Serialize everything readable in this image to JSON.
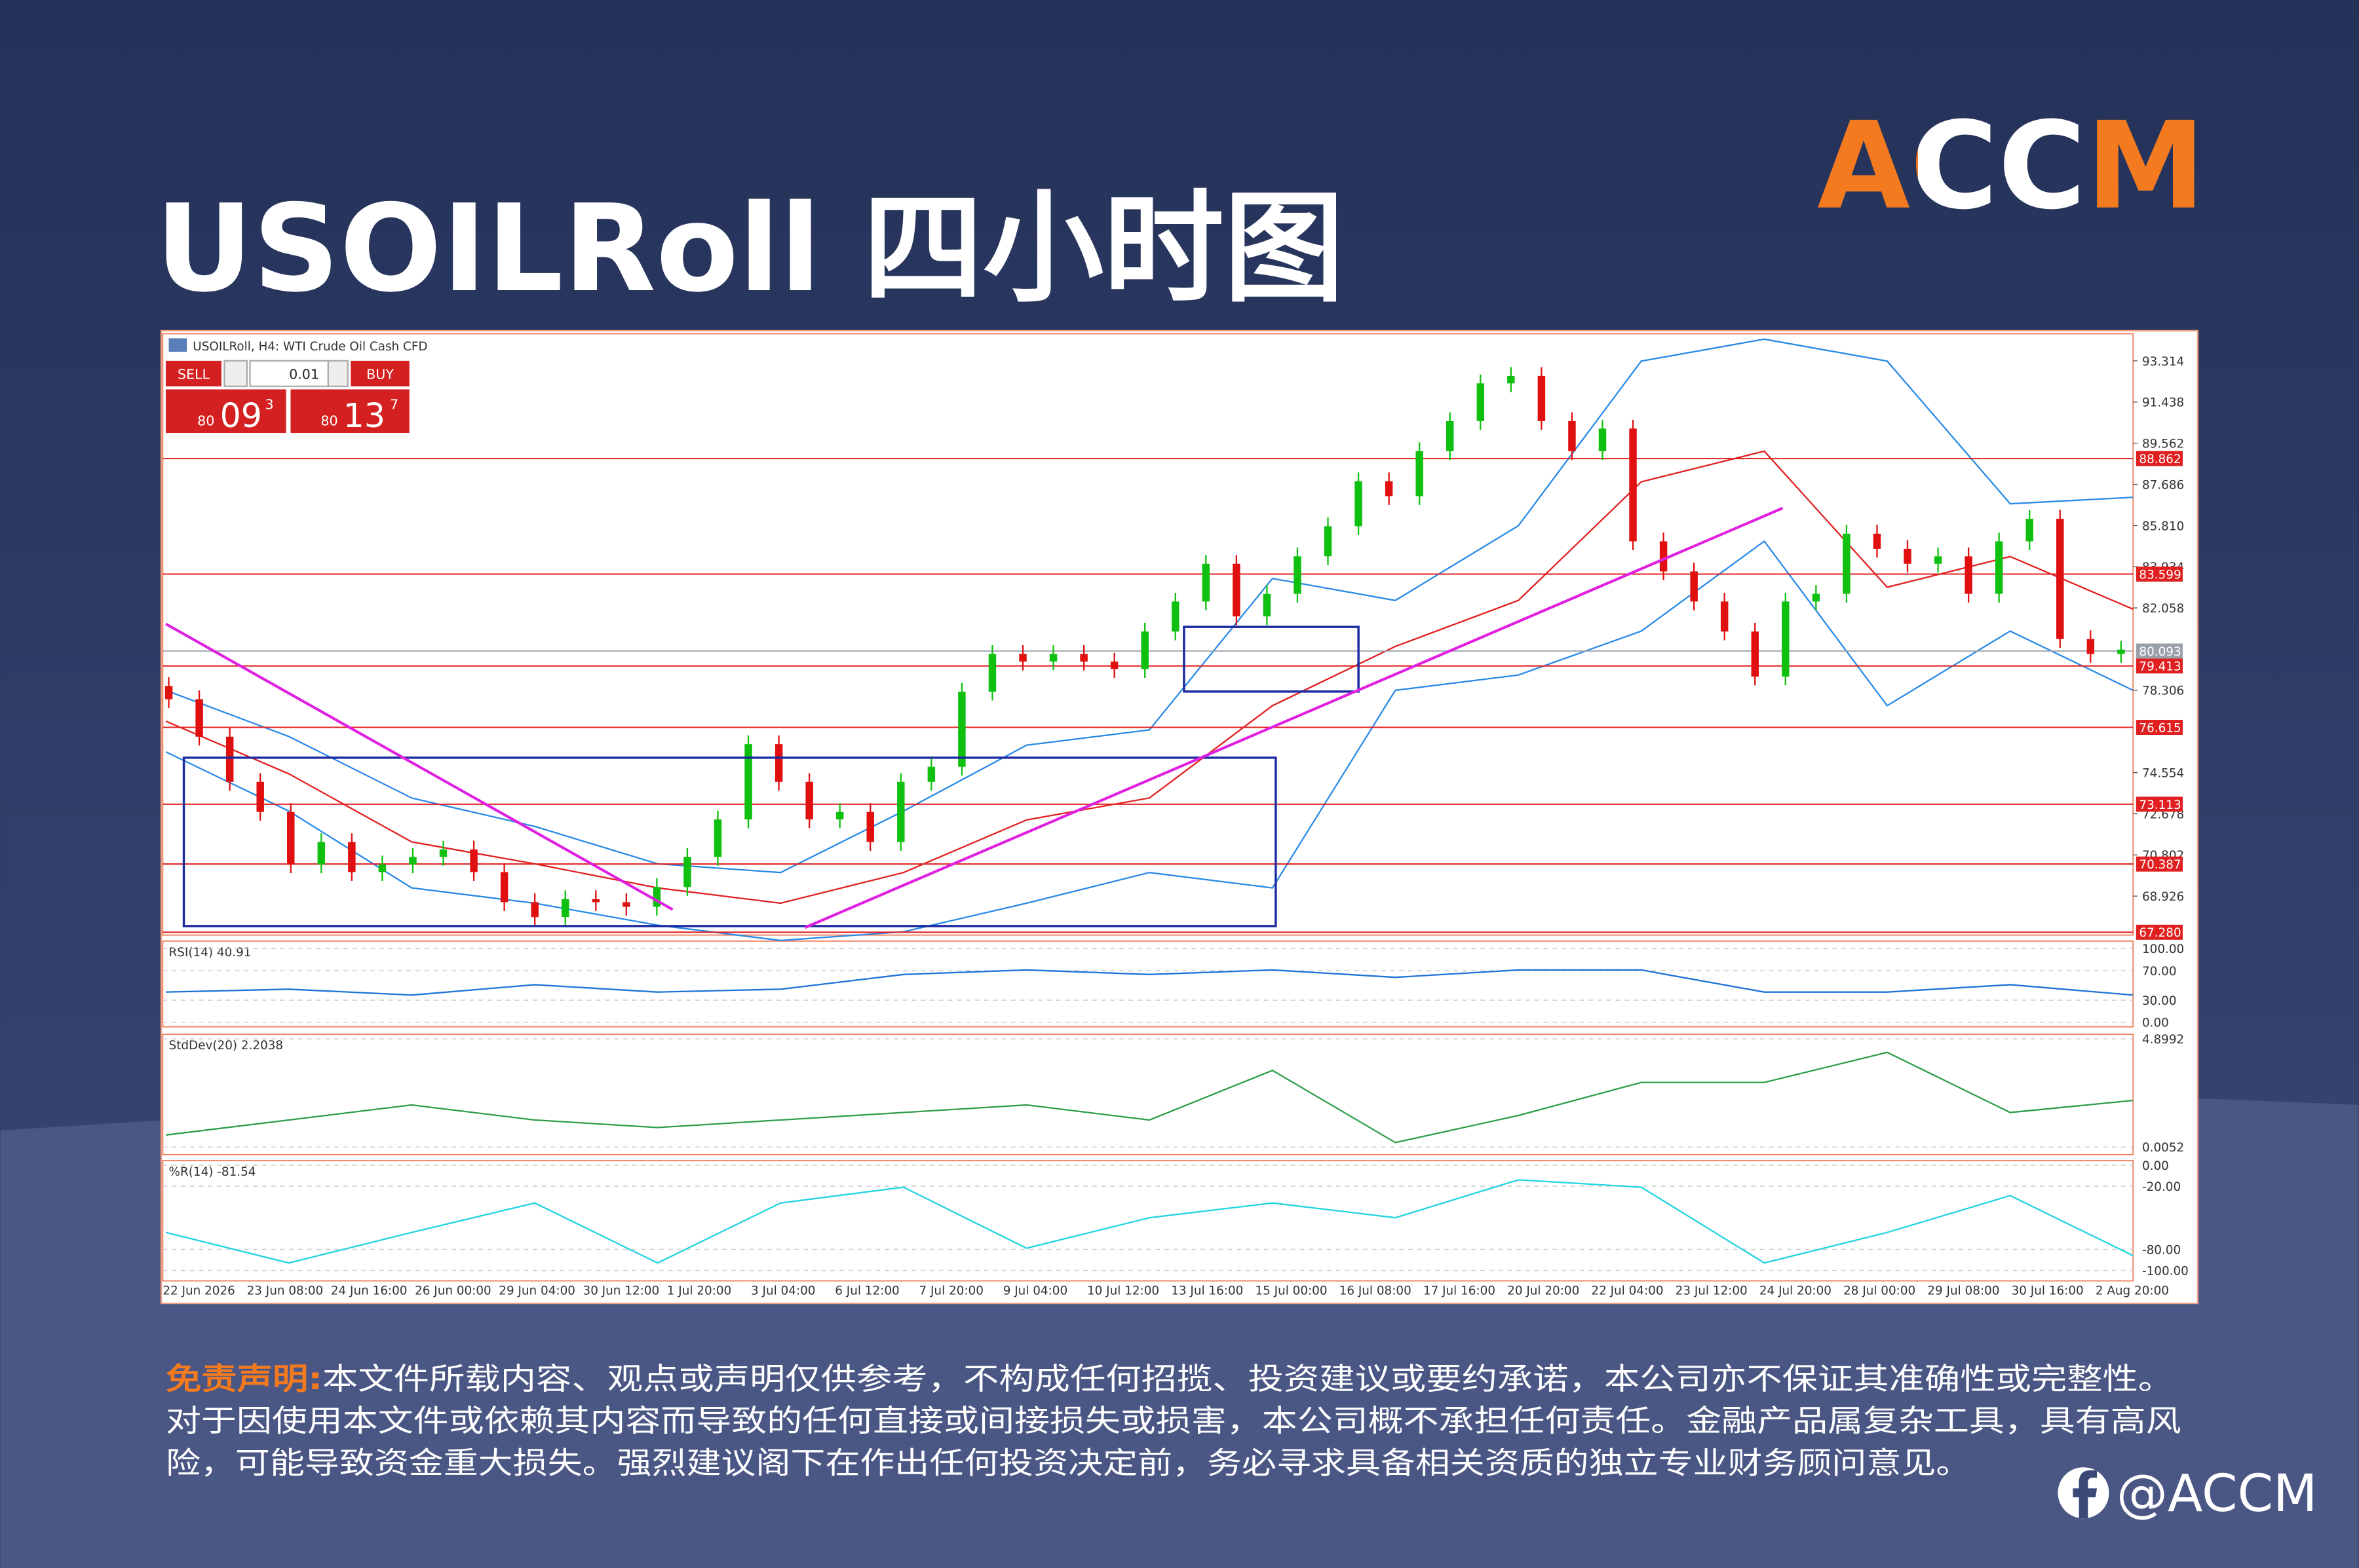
{
  "header": {
    "title": "USOILRoll 四小时图",
    "logo": "ACCM"
  },
  "ticket": {
    "sell": "SELL",
    "buy": "BUY",
    "volume": "0.01",
    "sell_price": {
      "big": "80",
      "pips": "09",
      "point": "3"
    },
    "buy_price": {
      "big": "80",
      "pips": "13",
      "point": "7"
    }
  },
  "chart_data": {
    "type": "candlestick",
    "title": "USOILRoll, H4: WTI Crude Oil Cash CFD",
    "up_color": "#10c010",
    "down_color": "#e01010",
    "open": [
      78.5,
      77.9,
      76.19,
      74.13,
      72.76,
      70.37,
      71.39,
      70.02,
      70.37,
      70.71,
      71.05,
      70.02,
      68.65,
      67.97,
      68.79,
      68.65,
      68.44,
      69.34,
      70.71,
      72.42,
      75.85,
      74.13,
      72.42,
      72.76,
      71.39,
      74.13,
      74.82,
      78.24,
      79.96,
      79.61,
      79.96,
      79.61,
      79.27,
      80.98,
      82.35,
      84.07,
      81.67,
      82.7,
      84.41,
      85.78,
      87.83,
      87.15,
      89.2,
      90.57,
      92.29,
      92.63,
      90.57,
      89.2,
      90.23,
      85.09,
      83.72,
      82.35,
      80.98,
      78.93,
      82.35,
      82.7,
      85.44,
      84.75,
      84.07,
      84.41,
      82.7,
      85.09,
      86.12,
      80.64,
      79.96
    ],
    "high": [
      78.9,
      78.3,
      76.59,
      74.53,
      73.16,
      71.79,
      71.79,
      70.77,
      71.11,
      71.45,
      71.45,
      70.42,
      69.05,
      69.19,
      69.19,
      69.05,
      69.74,
      71.11,
      72.82,
      76.25,
      76.25,
      74.53,
      73.16,
      73.16,
      74.53,
      75.22,
      78.64,
      80.36,
      80.36,
      80.36,
      80.36,
      80.01,
      81.38,
      82.75,
      84.47,
      84.47,
      83.1,
      84.81,
      86.18,
      88.23,
      88.23,
      89.6,
      90.97,
      92.69,
      93.03,
      93.03,
      90.97,
      90.63,
      90.63,
      85.49,
      84.12,
      82.75,
      81.38,
      82.75,
      83.1,
      85.84,
      85.84,
      85.15,
      84.81,
      84.81,
      85.49,
      86.52,
      86.52,
      81.04,
      80.56
    ],
    "low": [
      77.5,
      75.79,
      73.73,
      72.36,
      69.97,
      69.97,
      69.62,
      69.62,
      69.97,
      70.31,
      69.62,
      68.25,
      67.57,
      67.57,
      68.25,
      68.04,
      68.04,
      68.94,
      70.31,
      72.02,
      73.73,
      72.02,
      72.02,
      70.99,
      70.99,
      73.73,
      74.42,
      77.84,
      79.21,
      79.21,
      79.21,
      78.87,
      78.87,
      80.58,
      81.95,
      81.27,
      81.27,
      82.3,
      84.01,
      85.38,
      86.75,
      86.75,
      88.8,
      90.17,
      91.89,
      90.17,
      88.8,
      88.8,
      84.69,
      83.32,
      81.95,
      80.58,
      78.53,
      78.53,
      81.95,
      82.3,
      84.35,
      83.67,
      83.67,
      82.3,
      82.3,
      84.69,
      80.24,
      79.56,
      79.56
    ],
    "close": [
      77.9,
      76.19,
      74.13,
      72.76,
      70.37,
      71.39,
      70.02,
      70.37,
      70.71,
      71.05,
      70.02,
      68.65,
      67.97,
      68.79,
      68.65,
      68.44,
      69.34,
      70.71,
      72.42,
      75.85,
      74.13,
      72.42,
      72.76,
      71.39,
      74.13,
      74.82,
      78.24,
      79.96,
      79.61,
      79.96,
      79.61,
      79.27,
      80.98,
      82.35,
      84.07,
      81.67,
      82.7,
      84.41,
      85.78,
      87.83,
      87.15,
      89.2,
      90.57,
      92.29,
      92.63,
      90.57,
      89.2,
      90.23,
      85.09,
      83.72,
      82.35,
      80.98,
      78.93,
      82.35,
      82.7,
      85.44,
      84.75,
      84.07,
      84.41,
      82.7,
      85.09,
      86.12,
      80.64,
      79.96,
      80.16
    ],
    "ylim": [
      67.15,
      94.55
    ],
    "yticks": [
      93.314,
      91.438,
      89.562,
      87.686,
      {
        "value": 85.81,
        "label": "85.810"
      },
      83.934,
      82.058,
      78.306,
      74.554,
      72.678,
      70.802,
      68.926
    ],
    "levels": [
      88.862,
      83.599,
      79.413,
      {
        "value": 76.615,
        "label": "76.615"
      },
      73.113,
      70.387,
      {
        "value": 67.28,
        "label": "67.280"
      }
    ],
    "level_color": "#e02020",
    "current_price": 80.093,
    "current_color": "#9aa0aa",
    "overlays": [
      {
        "color": "#2a8ae6",
        "values": [
          78.3,
          76.2,
          73.4,
          72.1,
          70.4,
          70.0,
          72.8,
          75.8,
          76.5,
          83.4,
          82.4,
          85.8,
          93.3,
          94.3,
          93.3,
          86.8,
          87.1
        ]
      },
      {
        "color": "#2a8ae6",
        "values": [
          75.5,
          72.8,
          69.3,
          68.6,
          67.6,
          66.9,
          67.3,
          68.6,
          70.0,
          69.3,
          78.3,
          79.0,
          81.0,
          85.1,
          77.6,
          81.0,
          78.3
        ]
      },
      {
        "color": "#e02020",
        "values": [
          76.9,
          74.5,
          71.4,
          70.4,
          69.3,
          68.6,
          70.0,
          72.4,
          73.4,
          77.6,
          80.3,
          82.4,
          87.8,
          89.2,
          83.0,
          84.4,
          82.0
        ]
      }
    ],
    "x_labels": [
      "22 Jun 2026",
      "23 Jun 08:00",
      "24 Jun 16:00",
      "26 Jun 00:00",
      "29 Jun 04:00",
      "30 Jun 12:00",
      "1 Jul 20:00",
      "3 Jul 04:00",
      "6 Jul 12:00",
      "7 Jul 20:00",
      "9 Jul 04:00",
      "10 Jul 12:00",
      "13 Jul 16:00",
      "15 Jul 00:00",
      "16 Jul 08:00",
      "17 Jul 16:00",
      "20 Jul 20:00",
      "22 Jul 04:00",
      "23 Jul 12:00",
      "24 Jul 20:00",
      "28 Jul 00:00",
      "29 Jul 08:00",
      "30 Jul 16:00",
      "2 Aug 20:00"
    ],
    "indicators": [
      {
        "title": "RSI(14) 40.91",
        "color": "#1e73d8",
        "ylim": [
          -6.1,
          110.2
        ],
        "yticks": [
          {
            "value": 100,
            "label": "100.00"
          },
          {
            "value": 70,
            "label": "70.00"
          },
          {
            "value": 30,
            "label": "30.00"
          },
          {
            "value": 0,
            "label": "0.00"
          }
        ],
        "values": [
          41,
          45,
          37,
          51,
          41,
          45,
          65,
          71,
          65,
          71,
          61,
          71,
          71,
          41,
          41,
          51,
          37
        ]
      },
      {
        "title": "StdDev(20) 2.2038",
        "color": "#2e9e4a",
        "ylim": [
          -0.335,
          5.103
        ],
        "yticks": [
          4.8992,
          0.0052
        ],
        "values": [
          0.55,
          1.23,
          1.91,
          1.23,
          0.89,
          1.23,
          1.57,
          1.91,
          1.23,
          3.47,
          0.21,
          1.43,
          2.93,
          2.93,
          4.29,
          1.57,
          2.11
        ]
      },
      {
        "title": "%R(14) -81.54",
        "color": "#22d3e0",
        "ylim": [
          -110,
          4.3
        ],
        "yticks": [
          {
            "value": 0,
            "label": "0.00"
          },
          {
            "value": -20,
            "label": "-20.00"
          },
          {
            "value": -80,
            "label": "-80.00"
          },
          {
            "value": -100,
            "label": "-100.00"
          }
        ],
        "values": [
          -64,
          -93,
          -64,
          -36,
          -93,
          -36,
          -21,
          -79,
          -50,
          -36,
          -50,
          -14,
          -21,
          -93,
          -64,
          -29,
          -86
        ]
      }
    ]
  },
  "footer": {
    "disclaimer_label": "免责声明:",
    "lines": [
      "本文件所载内容、观点或声明仅供参考，不构成任何招揽、投资建议或要约承诺，本公司亦不保证其准确性或完整性。",
      "对于因使用本文件或依赖其内容而导致的任何直接或间接损失或损害，本公司概不承担任何责任。金融产品属复杂工具，具有高风",
      "险，可能导致资金重大损失。强烈建议阁下在作出任何投资决定前，务必寻求具备相关资质的独立专业财务顾问意见。"
    ],
    "social": "@ACCM"
  }
}
